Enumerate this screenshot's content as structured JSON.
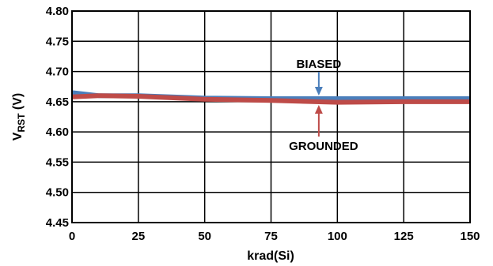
{
  "chart_data": {
    "type": "line",
    "xlabel": "krad(Si)",
    "ylabel_main": "V",
    "ylabel_sub": "RST",
    "ylabel_unit": " (V)",
    "xlim": [
      0,
      150
    ],
    "ylim": [
      4.45,
      4.8
    ],
    "x_ticks": [
      0,
      25,
      50,
      75,
      100,
      125,
      150
    ],
    "y_ticks": [
      4.45,
      4.5,
      4.55,
      4.6,
      4.65,
      4.7,
      4.75,
      4.8
    ],
    "x_tick_labels": [
      "0",
      "25",
      "50",
      "75",
      "100",
      "125",
      "150"
    ],
    "y_tick_labels": [
      "4.45",
      "4.50",
      "4.55",
      "4.60",
      "4.65",
      "4.70",
      "4.75",
      "4.80"
    ],
    "grid": true,
    "series": [
      {
        "name": "BIASED",
        "color": "#4a7ebb",
        "x": [
          0,
          10,
          25,
          50,
          75,
          100,
          125,
          150
        ],
        "y": [
          4.665,
          4.66,
          4.66,
          4.656,
          4.655,
          4.655,
          4.655,
          4.655
        ]
      },
      {
        "name": "GROUNDED",
        "color": "#be4b48",
        "x": [
          0,
          10,
          25,
          50,
          75,
          100,
          125,
          150
        ],
        "y": [
          4.658,
          4.66,
          4.659,
          4.654,
          4.652,
          4.649,
          4.65,
          4.65
        ]
      }
    ],
    "annotations": [
      {
        "text": "BIASED",
        "series": "BIASED",
        "arrow_x": 93,
        "direction": "down"
      },
      {
        "text": "GROUNDED",
        "series": "GROUNDED",
        "arrow_x": 93,
        "direction": "up"
      }
    ]
  }
}
